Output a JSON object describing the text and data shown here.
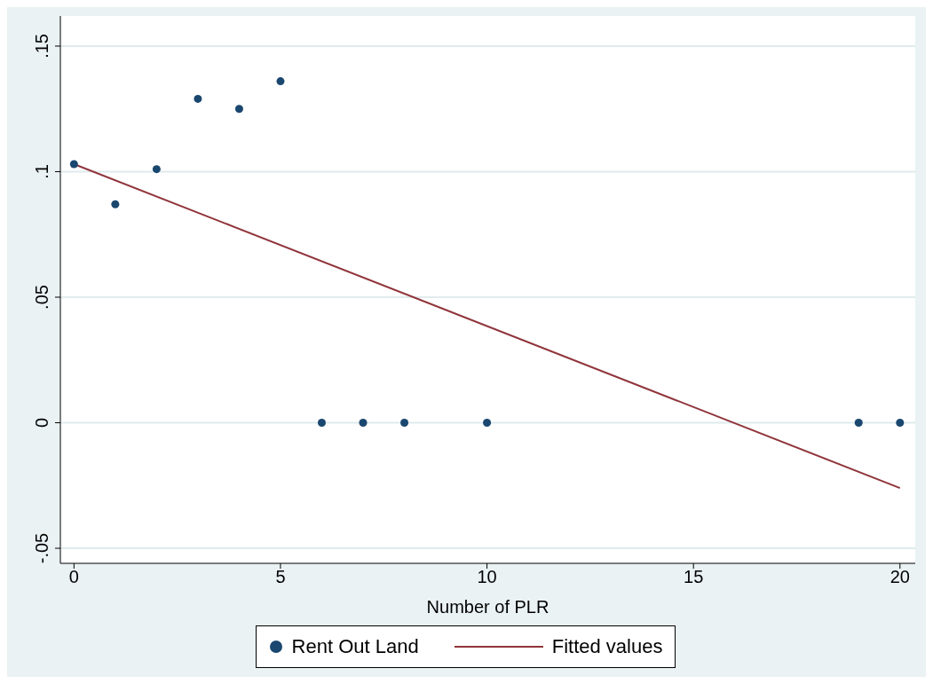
{
  "chart_data": {
    "type": "scatter",
    "xlabel": "Number of PLR",
    "series": [
      {
        "name": "Rent Out Land",
        "color": "#1a476f",
        "marker": "circle",
        "x": [
          0,
          1,
          2,
          3,
          4,
          5,
          6,
          7,
          8,
          10,
          19,
          20
        ],
        "values": [
          0.103,
          0.087,
          0.101,
          0.129,
          0.125,
          0.136,
          0,
          0,
          0,
          0,
          0,
          0
        ]
      },
      {
        "name": "Fitted values",
        "type": "line",
        "color": "#90353b",
        "x": [
          0,
          20
        ],
        "values": [
          0.103,
          -0.026
        ]
      }
    ],
    "xlim": [
      -0.33,
      20.37
    ],
    "xticks": [
      0,
      5,
      10,
      15,
      20
    ],
    "ylim": [
      -0.056,
      0.162
    ],
    "yticks": [
      {
        "value": -0.05,
        "label": "-.05"
      },
      0,
      {
        "value": 0.05,
        "label": ".05"
      },
      {
        "value": 0.1,
        "label": ".1"
      },
      {
        "value": 0.15,
        "label": ".15"
      }
    ],
    "grid": "y",
    "legend": "bottom"
  }
}
